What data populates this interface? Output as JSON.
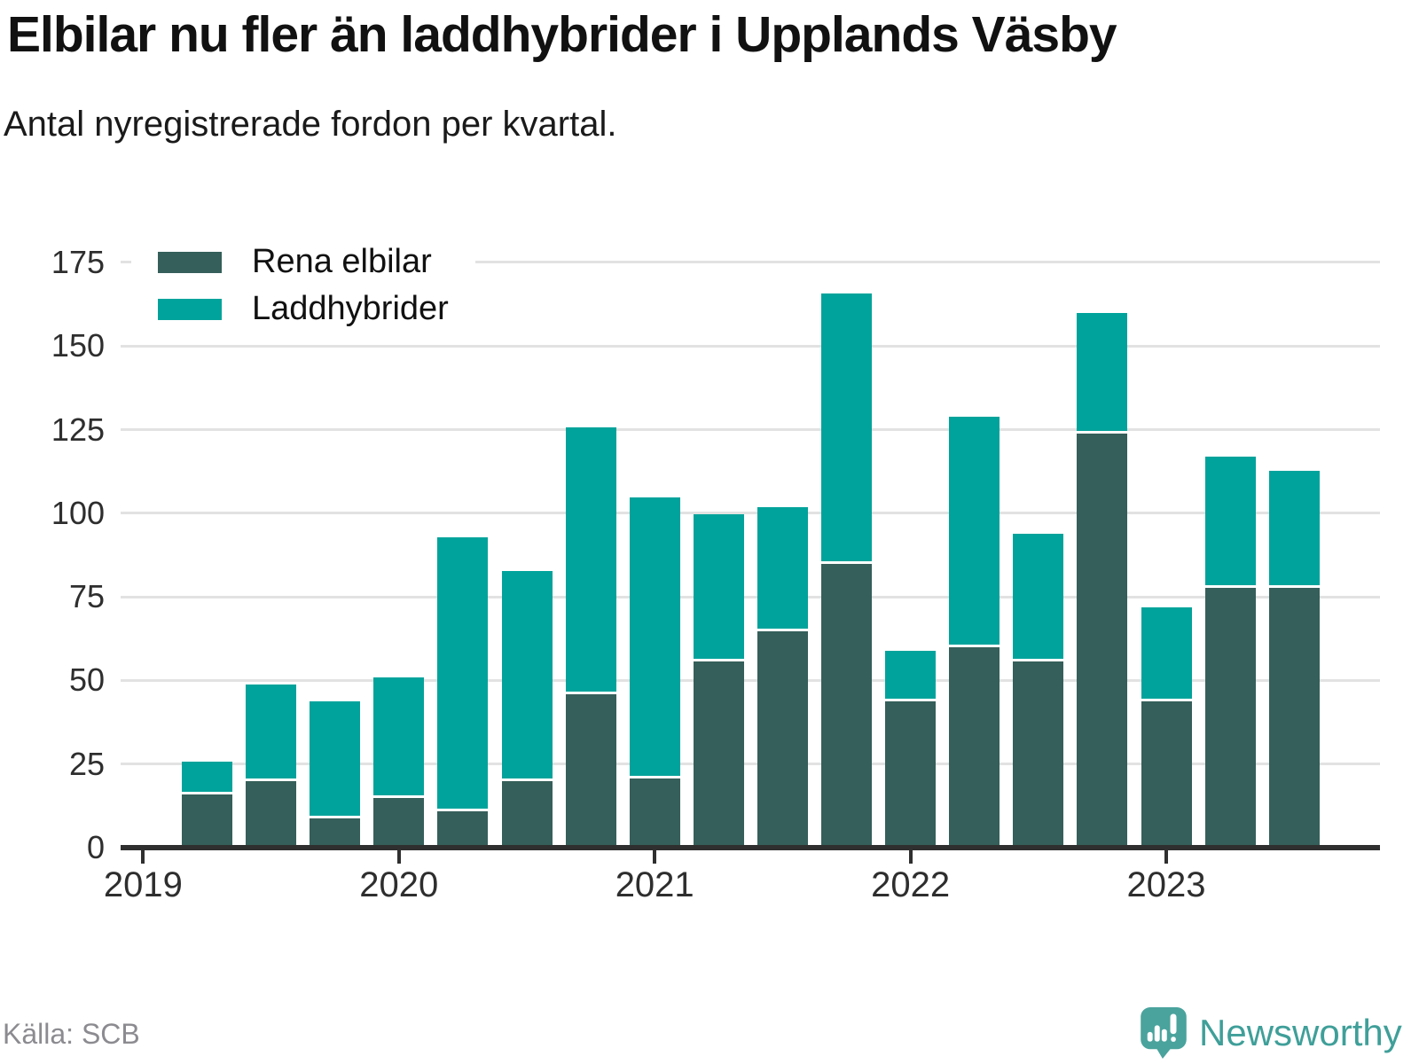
{
  "header": {
    "title": "Elbilar nu fler än laddhybrider i Upplands Väsby",
    "subtitle": "Antal nyregistrerade fordon per kvartal."
  },
  "legend": {
    "items": [
      {
        "label": "Rena elbilar",
        "color": "#355f5a"
      },
      {
        "label": "Laddhybrider",
        "color": "#00a39b"
      }
    ]
  },
  "chart_data": {
    "type": "bar",
    "stacked": true,
    "title": "Elbilar nu fler än laddhybrider i Upplands Väsby",
    "subtitle": "Antal nyregistrerade fordon per kvartal.",
    "xlabel": "",
    "ylabel": "",
    "categories": [
      "2019 Q2",
      "2019 Q3",
      "2019 Q4",
      "2020 Q1",
      "2020 Q2",
      "2020 Q3",
      "2020 Q4",
      "2021 Q1",
      "2021 Q2",
      "2021 Q3",
      "2021 Q4",
      "2022 Q1",
      "2022 Q2",
      "2022 Q3",
      "2022 Q4",
      "2023 Q1",
      "2023 Q2",
      "2023 Q3"
    ],
    "series": [
      {
        "name": "Rena elbilar",
        "color": "#355f5a",
        "values": [
          15,
          19,
          8,
          14,
          10,
          19,
          45,
          20,
          55,
          64,
          84,
          43,
          59,
          55,
          123,
          43,
          77,
          77
        ]
      },
      {
        "name": "Laddhybrider",
        "color": "#00a39b",
        "values": [
          10,
          29,
          35,
          36,
          82,
          63,
          80,
          84,
          44,
          37,
          81,
          15,
          69,
          38,
          36,
          28,
          39,
          35
        ]
      }
    ],
    "stack_totals": [
      25,
      48,
      43,
      50,
      92,
      82,
      125,
      104,
      99,
      101,
      165,
      58,
      128,
      93,
      159,
      71,
      116,
      112
    ],
    "y_ticks": [
      0,
      25,
      50,
      75,
      100,
      125,
      150,
      175
    ],
    "ylim": [
      0,
      185
    ],
    "x_year_ticks": [
      {
        "label": "2019",
        "bar_index": -1
      },
      {
        "label": "2020",
        "bar_index": 3
      },
      {
        "label": "2021",
        "bar_index": 7
      },
      {
        "label": "2022",
        "bar_index": 11
      },
      {
        "label": "2023",
        "bar_index": 15
      }
    ],
    "grid": "horizontal",
    "legend_position": "top-left-inside"
  },
  "source": {
    "label": "Källa: SCB"
  },
  "branding": {
    "name": "Newsworthy",
    "color": "#3f9f99",
    "logo_color": "#4aa39d"
  }
}
